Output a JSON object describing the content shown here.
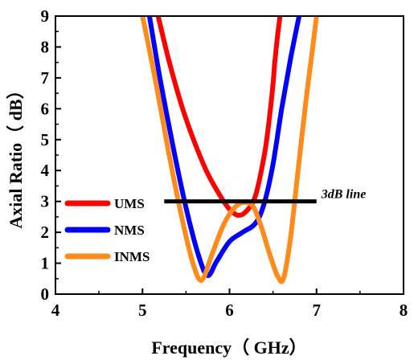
{
  "chart_data": {
    "type": "line",
    "xlabel": "Frequency（ GHz）",
    "ylabel": "Axial Ratio（ dB）",
    "xlim": [
      4,
      8
    ],
    "ylim": [
      0,
      9
    ],
    "xticks": [
      "4",
      "5",
      "6",
      "7",
      "8"
    ],
    "yticks": [
      "0",
      "1",
      "2",
      "3",
      "4",
      "5",
      "6",
      "7",
      "8",
      "9"
    ],
    "grid": false,
    "legend_position": "center-left",
    "series": [
      {
        "name": "UMS",
        "color": "#ff0000",
        "x": [
          5.18,
          5.3,
          5.45,
          5.6,
          5.75,
          5.9,
          6.0,
          6.1,
          6.2,
          6.3,
          6.4,
          6.45,
          6.5,
          6.52,
          6.55,
          6.58
        ],
        "y": [
          9.0,
          7.6,
          6.1,
          4.9,
          3.9,
          3.15,
          2.75,
          2.55,
          2.7,
          3.2,
          4.5,
          5.5,
          6.8,
          7.5,
          8.3,
          9.0
        ]
      },
      {
        "name": "NMS",
        "color": "#0000ff",
        "x": [
          5.08,
          5.2,
          5.35,
          5.5,
          5.65,
          5.75,
          5.85,
          6.0,
          6.15,
          6.3,
          6.4,
          6.5,
          6.6,
          6.7,
          6.8
        ],
        "y": [
          9.0,
          7.0,
          4.8,
          2.8,
          1.2,
          0.6,
          1.05,
          1.7,
          2.0,
          2.3,
          2.95,
          4.2,
          6.0,
          7.6,
          9.0
        ]
      },
      {
        "name": "INMS",
        "color": "#ff8c1a",
        "x": [
          5.0,
          5.15,
          5.3,
          5.45,
          5.58,
          5.68,
          5.8,
          5.95,
          6.1,
          6.25,
          6.35,
          6.45,
          6.55,
          6.62,
          6.7,
          6.78,
          6.88,
          6.97,
          7.0
        ],
        "y": [
          9.0,
          6.9,
          4.6,
          2.5,
          1.0,
          0.45,
          1.3,
          2.35,
          2.9,
          2.9,
          2.3,
          1.4,
          0.6,
          0.5,
          1.8,
          3.8,
          6.3,
          8.3,
          9.0
        ]
      }
    ],
    "reference_line": {
      "label": "3dB line",
      "x": [
        5.25,
        7.0
      ],
      "y": 3
    }
  },
  "colors": {
    "ums": "#ff0000",
    "nms": "#0000ff",
    "inms": "#ff8c1a",
    "axis": "#000000"
  }
}
